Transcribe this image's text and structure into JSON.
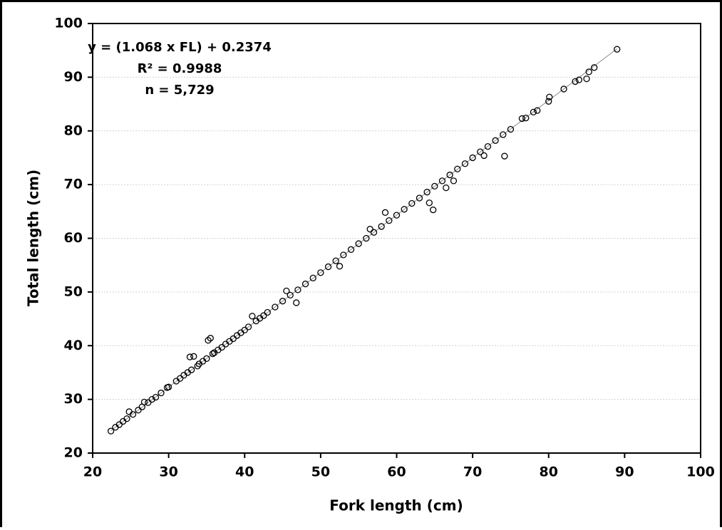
{
  "chart_data": {
    "type": "scatter",
    "annotations": [
      "y = (1.068 x FL) + 0.2374",
      "R² = 0.9988",
      "n = 5,729"
    ],
    "x_label": "Fork length (cm)",
    "y_label": "Total length (cm)",
    "xlim": [
      20,
      100
    ],
    "xticks": [
      20,
      30,
      40,
      50,
      60,
      70,
      80,
      90,
      100
    ],
    "ylim": [
      20,
      100
    ],
    "yticks": [
      20,
      30,
      40,
      50,
      60,
      70,
      80,
      90,
      100
    ],
    "grid": true,
    "color": "#000000",
    "x": [
      22.4,
      23,
      23.5,
      24,
      24.5,
      24.8,
      25.3,
      26,
      26.5,
      26.8,
      27.3,
      27.8,
      28.3,
      29,
      29.8,
      30,
      31,
      31.5,
      32,
      32.5,
      32.8,
      33,
      33.3,
      33.8,
      34,
      34.5,
      35,
      35.2,
      35.5,
      35.8,
      36,
      36.5,
      37,
      37.5,
      38,
      38.5,
      39,
      39.5,
      40,
      40.5,
      41,
      41.5,
      42,
      42.5,
      43,
      44,
      45,
      45.5,
      46,
      46.8,
      47,
      48,
      49,
      50,
      51,
      52,
      52.5,
      53,
      54,
      55,
      56,
      56.5,
      57,
      58,
      58.5,
      59,
      60,
      61,
      62,
      63,
      64,
      64.3,
      64.8,
      65,
      66,
      66.5,
      67,
      67.5,
      68,
      69,
      70,
      71,
      71.5,
      72,
      73,
      74,
      74.2,
      75,
      76.5,
      77,
      78,
      78.5,
      80,
      80.1,
      82,
      83.5,
      84,
      85,
      85.3,
      86,
      89
    ],
    "y": [
      24.1,
      24.8,
      25.3,
      25.9,
      26.4,
      27.7,
      27.2,
      28.0,
      28.6,
      29.5,
      29.4,
      30.0,
      30.4,
      31.2,
      32.2,
      32.3,
      33.4,
      33.9,
      34.5,
      35.0,
      37.9,
      35.5,
      38.0,
      36.2,
      36.6,
      37.1,
      37.6,
      41.0,
      41.4,
      38.5,
      38.7,
      39.2,
      39.7,
      40.3,
      40.8,
      41.3,
      41.9,
      42.4,
      42.9,
      43.5,
      45.5,
      44.6,
      45.1,
      45.6,
      46.2,
      47.2,
      48.3,
      50.2,
      49.4,
      48.0,
      50.4,
      51.5,
      52.6,
      53.6,
      54.7,
      55.8,
      54.8,
      56.9,
      57.9,
      59.0,
      60.0,
      61.7,
      61.1,
      62.2,
      64.8,
      63.3,
      64.3,
      65.4,
      66.5,
      67.5,
      68.6,
      66.6,
      65.3,
      69.7,
      70.7,
      69.4,
      71.8,
      70.7,
      72.9,
      73.9,
      75.0,
      76.1,
      75.4,
      77.1,
      78.2,
      79.3,
      75.3,
      80.3,
      82.3,
      82.4,
      83.5,
      83.8,
      85.5,
      86.3,
      87.8,
      89.2,
      89.5,
      89.7,
      91.0,
      91.8,
      95.2
    ],
    "trendline": {
      "x": [
        22.4,
        89
      ],
      "y": [
        24.16,
        95.29
      ]
    }
  }
}
